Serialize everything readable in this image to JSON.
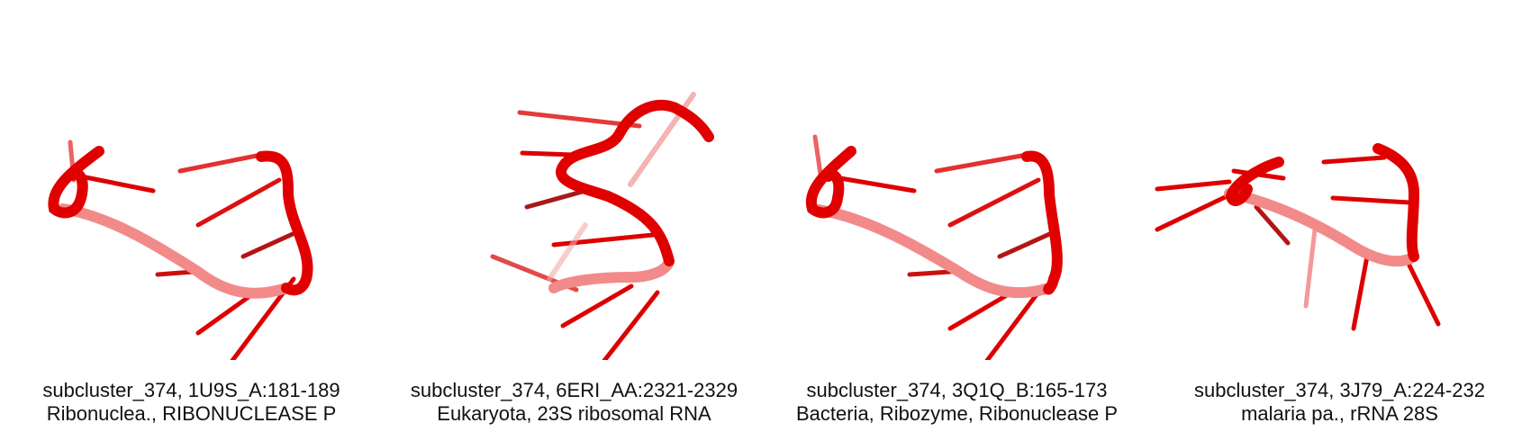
{
  "structure_color": "#e00000",
  "panels": [
    {
      "title": "subcluster_374, 1U9S_A:181-189",
      "subtitle": "Ribonuclea., RIBONUCLEASE P"
    },
    {
      "title": "subcluster_374, 6ERI_AA:2321-2329",
      "subtitle": "Eukaryota, 23S ribosomal RNA"
    },
    {
      "title": "subcluster_374, 3Q1Q_B:165-173",
      "subtitle": "Bacteria, Ribozyme, Ribonuclease P"
    },
    {
      "title": "subcluster_374, 3J79_A:224-232",
      "subtitle": "malaria pa., rRNA 28S"
    }
  ]
}
